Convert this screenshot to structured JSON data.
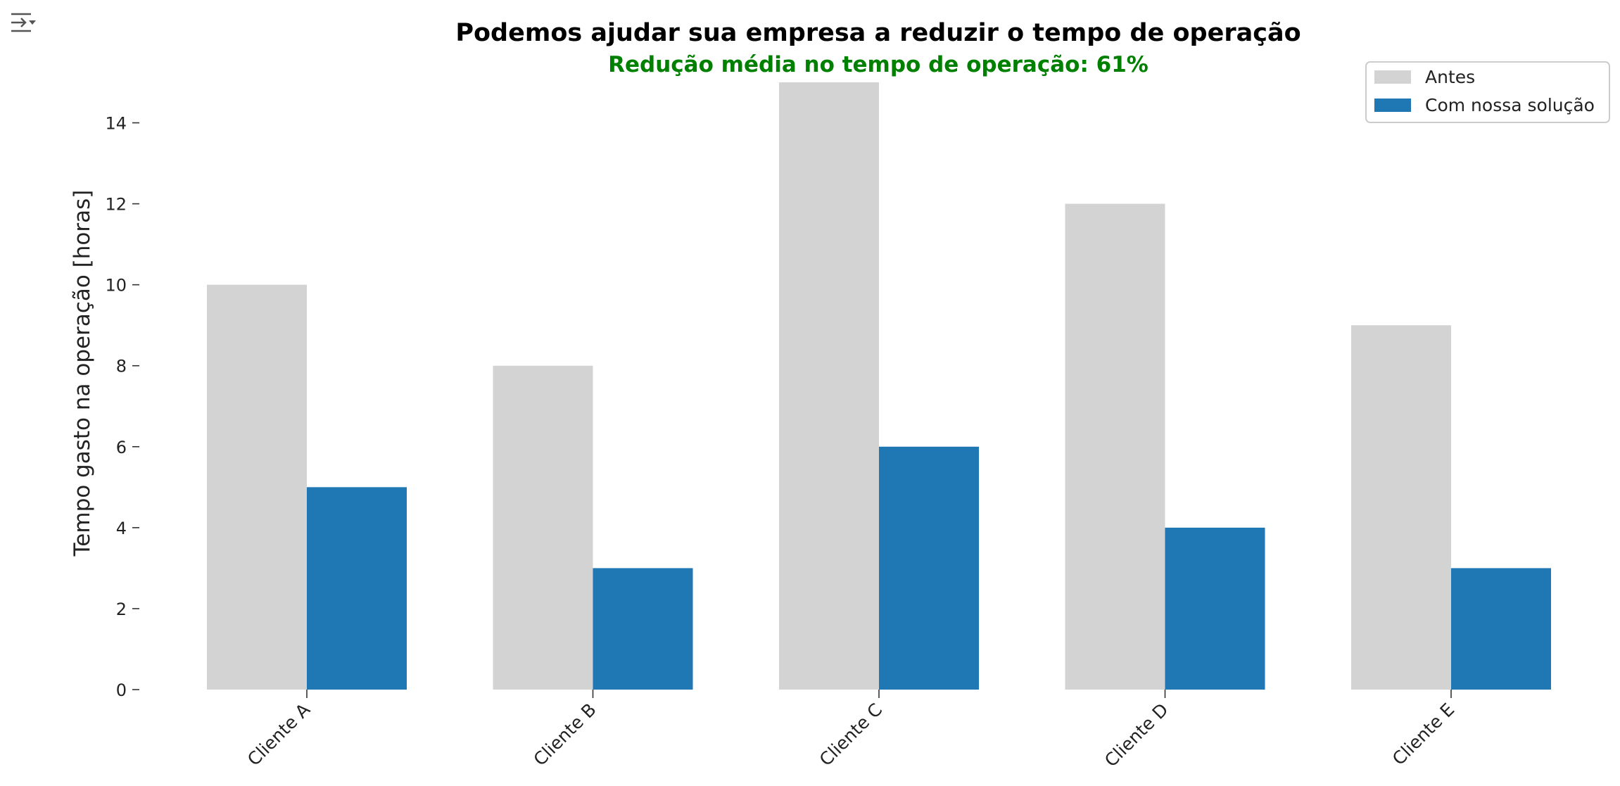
{
  "output_toggle_icon": "output-collapse-icon",
  "colors": {
    "title": "#000000",
    "subtitle": "#008000",
    "antes": "#d3d3d3",
    "solucao": "#1f77b4",
    "axis_text": "#222222"
  },
  "chart_data": {
    "type": "bar",
    "title": "Podemos ajudar sua empresa a reduzir o tempo de operação",
    "subtitle": "Redução média no tempo de operação: 61%",
    "xlabel": "",
    "ylabel": "Tempo gasto na operação [horas]",
    "categories": [
      "Cliente A",
      "Cliente B",
      "Cliente C",
      "Cliente D",
      "Cliente E"
    ],
    "series": [
      {
        "name": "Antes",
        "values": [
          10,
          8,
          15,
          12,
          9
        ]
      },
      {
        "name": "Com nossa solução",
        "values": [
          5,
          3,
          6,
          4,
          3
        ]
      }
    ],
    "ylim": [
      0,
      15
    ],
    "yticks": [
      0,
      2,
      4,
      6,
      8,
      10,
      12,
      14
    ],
    "grid": false,
    "legend": "top-right"
  }
}
